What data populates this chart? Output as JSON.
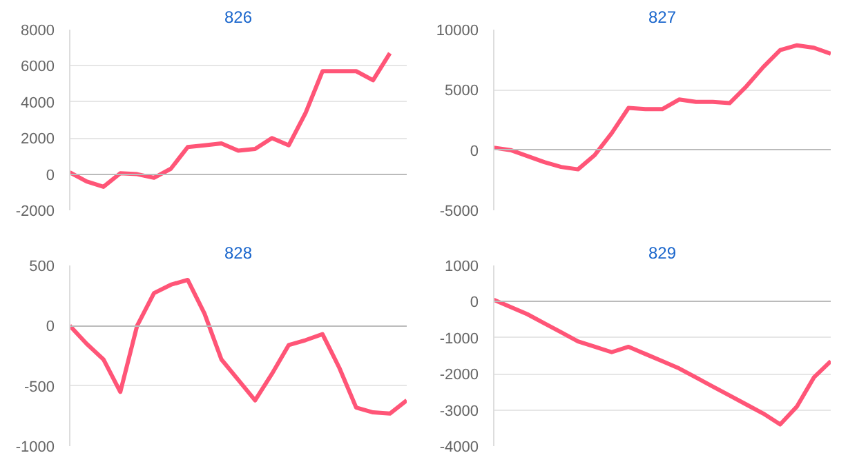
{
  "chart_data": [
    {
      "type": "line",
      "title": "826",
      "categories": [
        null,
        null,
        null,
        null,
        null,
        null,
        null,
        null,
        null,
        null,
        null,
        null,
        null,
        null,
        null,
        null,
        null,
        null,
        null,
        null,
        null
      ],
      "series": [
        {
          "color": "#ff5577",
          "values": [
            100,
            -400,
            -700,
            50,
            0,
            -200,
            300,
            1500,
            1600,
            1700,
            1300,
            1400,
            2000,
            1600,
            3400,
            5700,
            5700,
            5700,
            5200,
            6700,
            null
          ]
        }
      ],
      "ylim": [
        -2000,
        8000
      ],
      "yticks": [
        -2000,
        0,
        2000,
        4000,
        6000,
        8000
      ],
      "grid": "y",
      "tick_labels": "y"
    },
    {
      "type": "line",
      "title": "827",
      "categories": [
        null,
        null,
        null,
        null,
        null,
        null,
        null,
        null,
        null,
        null,
        null,
        null,
        null,
        null,
        null,
        null,
        null,
        null,
        null,
        null,
        null
      ],
      "series": [
        {
          "color": "#ff5577",
          "values": [
            200,
            0,
            -500,
            -1000,
            -1400,
            -1600,
            -400,
            1400,
            3500,
            3400,
            3400,
            4200,
            4000,
            4000,
            3900,
            5300,
            6900,
            8300,
            8700,
            8500,
            8000
          ]
        }
      ],
      "ylim": [
        -5000,
        10000
      ],
      "yticks": [
        -5000,
        0,
        5000,
        10000
      ],
      "grid": "y",
      "tick_labels": "y"
    },
    {
      "type": "line",
      "title": "828",
      "categories": [
        null,
        null,
        null,
        null,
        null,
        null,
        null,
        null,
        null,
        null,
        null,
        null,
        null,
        null,
        null,
        null,
        null,
        null,
        null,
        null,
        null
      ],
      "series": [
        {
          "color": "#ff5577",
          "values": [
            0,
            -150,
            -280,
            -550,
            0,
            270,
            340,
            380,
            100,
            -280,
            -450,
            -620,
            -400,
            -160,
            -120,
            -70,
            -350,
            -680,
            -720,
            -730,
            -620
          ]
        }
      ],
      "ylim": [
        -1000,
        500
      ],
      "yticks": [
        -1000,
        -500,
        0,
        500
      ],
      "grid": "y",
      "tick_labels": "y"
    },
    {
      "type": "line",
      "title": "829",
      "categories": [
        null,
        null,
        null,
        null,
        null,
        null,
        null,
        null,
        null,
        null,
        null,
        null,
        null,
        null,
        null,
        null,
        null,
        null,
        null,
        null,
        null
      ],
      "series": [
        {
          "color": "#ff5577",
          "values": [
            50,
            -150,
            -350,
            -600,
            -850,
            -1100,
            -1250,
            -1400,
            -1250,
            -1450,
            -1650,
            -1850,
            -2100,
            -2350,
            -2600,
            -2850,
            -3100,
            -3400,
            -2900,
            -2100,
            -1650
          ]
        }
      ],
      "ylim": [
        -4000,
        1000
      ],
      "yticks": [
        -4000,
        -3000,
        -2000,
        -1000,
        0,
        1000
      ],
      "grid": "y",
      "tick_labels": "y"
    }
  ]
}
